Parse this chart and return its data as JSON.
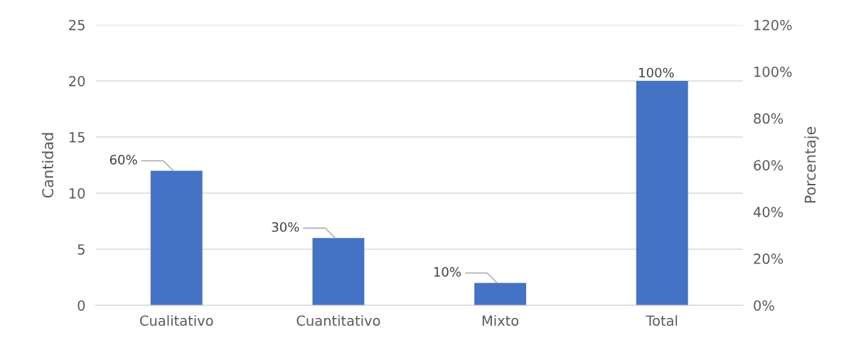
{
  "chart_data": {
    "type": "bar",
    "ylabel": "Cantidad",
    "y2label": "Porcentaje",
    "categories": [
      "Cualitativo",
      "Cuantitativo",
      "Mixto",
      "Total"
    ],
    "series": [
      {
        "color": "#4472c4",
        "values": [
          12,
          6,
          2,
          20
        ]
      }
    ],
    "annotations": [
      {
        "text": "60%",
        "x": "Cualitativo",
        "y": 12
      },
      {
        "text": "30%",
        "x": "Cuantitativo",
        "y": 6
      },
      {
        "text": "10%",
        "x": "Mixto",
        "y": 2
      },
      {
        "text": "100%",
        "x": "Total",
        "y": 20
      }
    ],
    "ylim": [
      0,
      25
    ],
    "yticks": [
      0,
      5,
      10,
      15,
      20,
      25
    ],
    "y2lim": [
      0,
      120
    ],
    "y2ticks": [
      {
        "value": 0,
        "label": "0%"
      },
      {
        "value": 20,
        "label": "20%"
      },
      {
        "value": 40,
        "label": "40%"
      },
      {
        "value": 60,
        "label": "60%"
      },
      {
        "value": 80,
        "label": "80%"
      },
      {
        "value": 100,
        "label": "100%"
      },
      {
        "value": 120,
        "label": "120%"
      }
    ],
    "grid": "y",
    "legend": false
  }
}
